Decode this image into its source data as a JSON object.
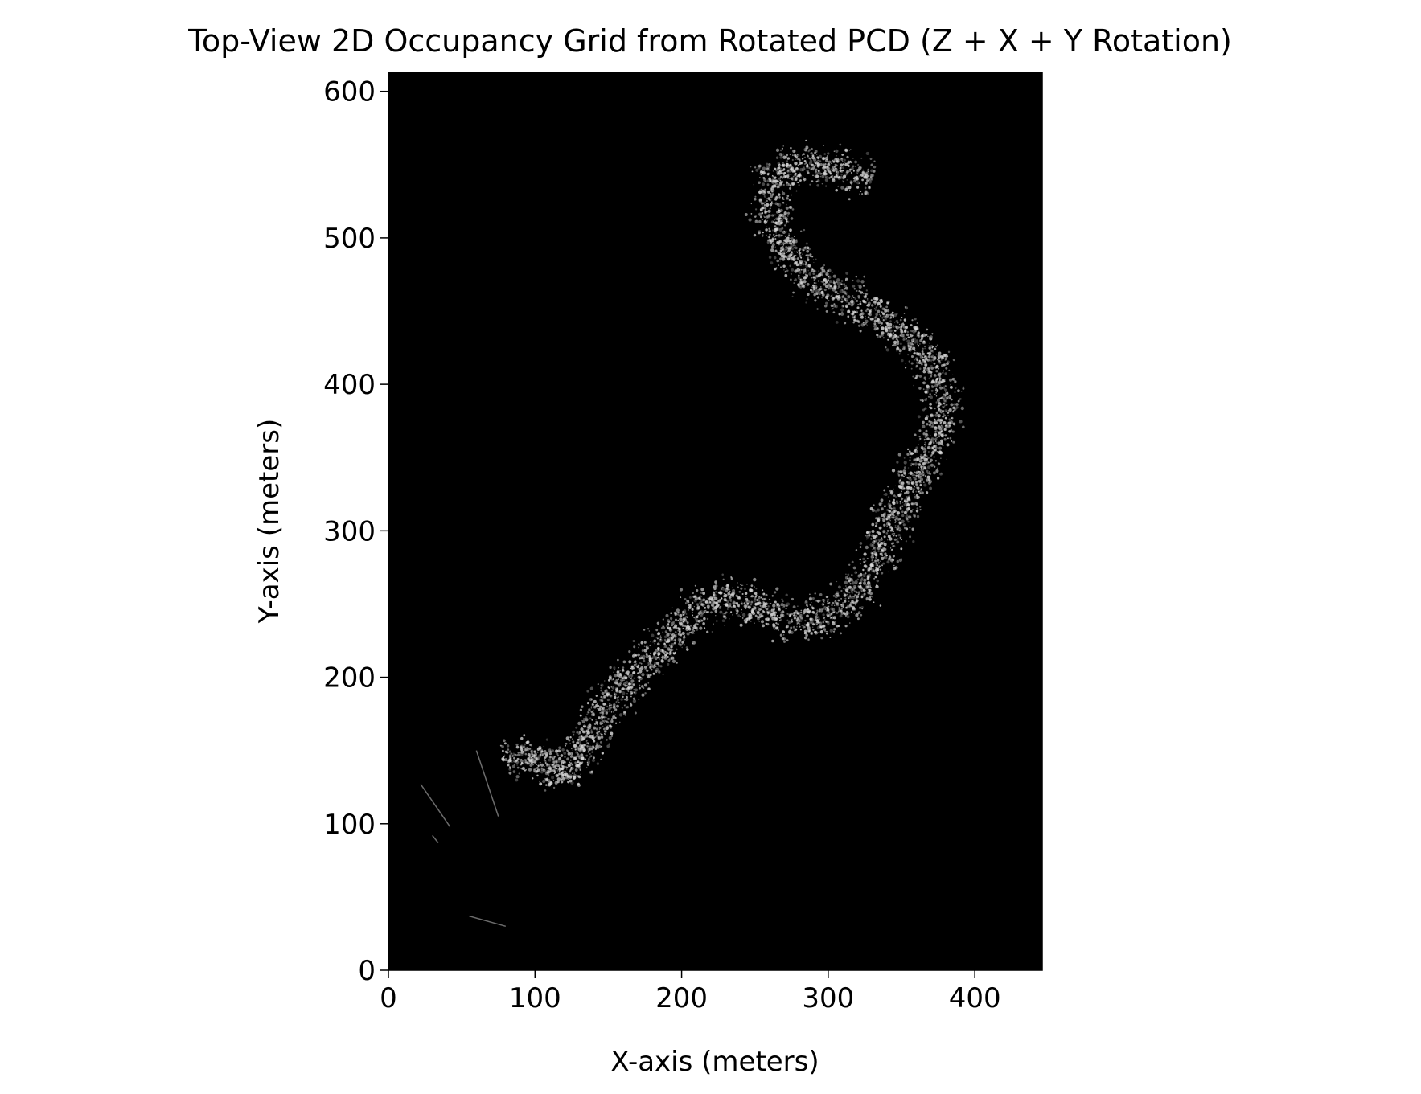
{
  "chart_data": {
    "type": "heatmap",
    "title": "Top-View 2D Occupancy Grid from Rotated PCD (Z + X + Y Rotation)",
    "xlabel": "X-axis (meters)",
    "ylabel": "Y-axis (meters)",
    "xlim": [
      0,
      446
    ],
    "ylim": [
      0,
      613
    ],
    "x_ticks": [
      0,
      100,
      200,
      300,
      400
    ],
    "y_ticks": [
      0,
      100,
      200,
      300,
      400,
      500,
      600
    ],
    "grid": false,
    "legend": "none",
    "colormap": "gray",
    "background_color": "#000000",
    "point_color": "#d8d8d8",
    "occupied_path": [
      [
        80,
        140
      ],
      [
        100,
        150
      ],
      [
        120,
        130
      ],
      [
        140,
        165
      ],
      [
        160,
        195
      ],
      [
        190,
        225
      ],
      [
        220,
        255
      ],
      [
        250,
        250
      ],
      [
        280,
        235
      ],
      [
        320,
        255
      ],
      [
        350,
        320
      ],
      [
        380,
        380
      ],
      [
        370,
        420
      ],
      [
        330,
        450
      ],
      [
        290,
        470
      ],
      [
        260,
        510
      ],
      [
        265,
        550
      ],
      [
        300,
        550
      ],
      [
        330,
        540
      ]
    ],
    "path_halfwidth_m": 20,
    "stray_segments": [
      [
        [
          22,
          127
        ],
        [
          42,
          98
        ]
      ],
      [
        [
          30,
          92
        ],
        [
          34,
          87
        ]
      ],
      [
        [
          55,
          37
        ],
        [
          80,
          30
        ]
      ],
      [
        [
          60,
          150
        ],
        [
          75,
          105
        ]
      ]
    ]
  }
}
